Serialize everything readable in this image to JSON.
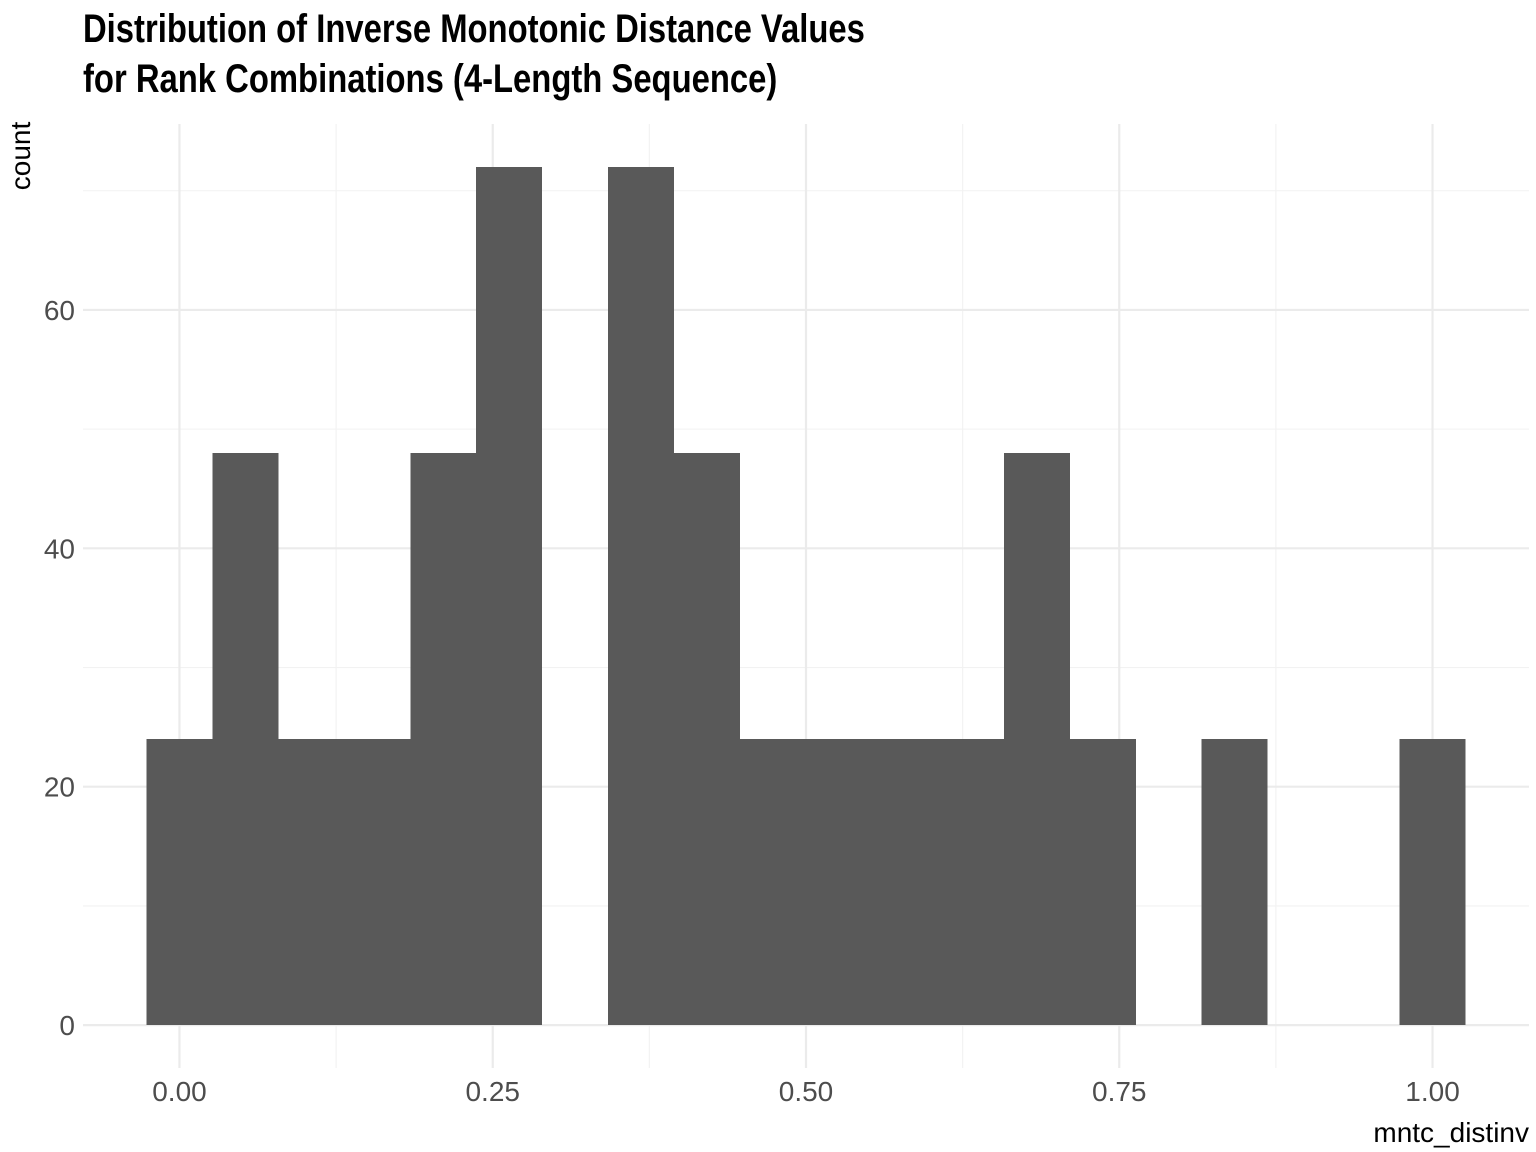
{
  "chart_data": {
    "type": "bar",
    "title_lines": [
      "Distribution of Inverse Monotonic Distance Values",
      "for Rank Combinations (4-Length Sequence)"
    ],
    "xlabel": "mntc_distinv",
    "ylabel": "count",
    "xlim": [
      -0.077,
      1.077
    ],
    "ylim": [
      -3.6,
      75.6
    ],
    "x_ticks": [
      0.0,
      0.25,
      0.5,
      0.75,
      1.0
    ],
    "x_tick_labels": [
      "0.00",
      "0.25",
      "0.50",
      "0.75",
      "1.00"
    ],
    "y_ticks": [
      0,
      20,
      40,
      60
    ],
    "y_tick_labels": [
      "0",
      "20",
      "40",
      "60"
    ],
    "x_minor_breaks": [
      0.125,
      0.375,
      0.625,
      0.875
    ],
    "y_minor_breaks": [
      10,
      30,
      50,
      70
    ],
    "bin_width": 0.0526,
    "bins": [
      {
        "x_start": -0.0263,
        "x_end": 0.0263,
        "count": 24
      },
      {
        "x_start": 0.0263,
        "x_end": 0.0789,
        "count": 48
      },
      {
        "x_start": 0.0789,
        "x_end": 0.1316,
        "count": 24
      },
      {
        "x_start": 0.1316,
        "x_end": 0.1842,
        "count": 24
      },
      {
        "x_start": 0.1842,
        "x_end": 0.2368,
        "count": 48
      },
      {
        "x_start": 0.2368,
        "x_end": 0.2895,
        "count": 72
      },
      {
        "x_start": 0.2895,
        "x_end": 0.3421,
        "count": 0
      },
      {
        "x_start": 0.3421,
        "x_end": 0.3947,
        "count": 72
      },
      {
        "x_start": 0.3947,
        "x_end": 0.4474,
        "count": 48
      },
      {
        "x_start": 0.4474,
        "x_end": 0.5,
        "count": 24
      },
      {
        "x_start": 0.5,
        "x_end": 0.5526,
        "count": 24
      },
      {
        "x_start": 0.5526,
        "x_end": 0.6053,
        "count": 24
      },
      {
        "x_start": 0.6053,
        "x_end": 0.6579,
        "count": 24
      },
      {
        "x_start": 0.6579,
        "x_end": 0.7105,
        "count": 48
      },
      {
        "x_start": 0.7105,
        "x_end": 0.7632,
        "count": 24
      },
      {
        "x_start": 0.7632,
        "x_end": 0.8158,
        "count": 0
      },
      {
        "x_start": 0.8158,
        "x_end": 0.8684,
        "count": 24
      },
      {
        "x_start": 0.8684,
        "x_end": 0.9211,
        "count": 0
      },
      {
        "x_start": 0.9211,
        "x_end": 0.9737,
        "count": 0
      },
      {
        "x_start": 0.9737,
        "x_end": 1.0263,
        "count": 24
      }
    ],
    "bar_color": "#595959",
    "grid": true,
    "grid_major_color": "#ebebeb",
    "grid_minor_color": "#f2f2f2",
    "background": "#ffffff",
    "legend": "none"
  }
}
